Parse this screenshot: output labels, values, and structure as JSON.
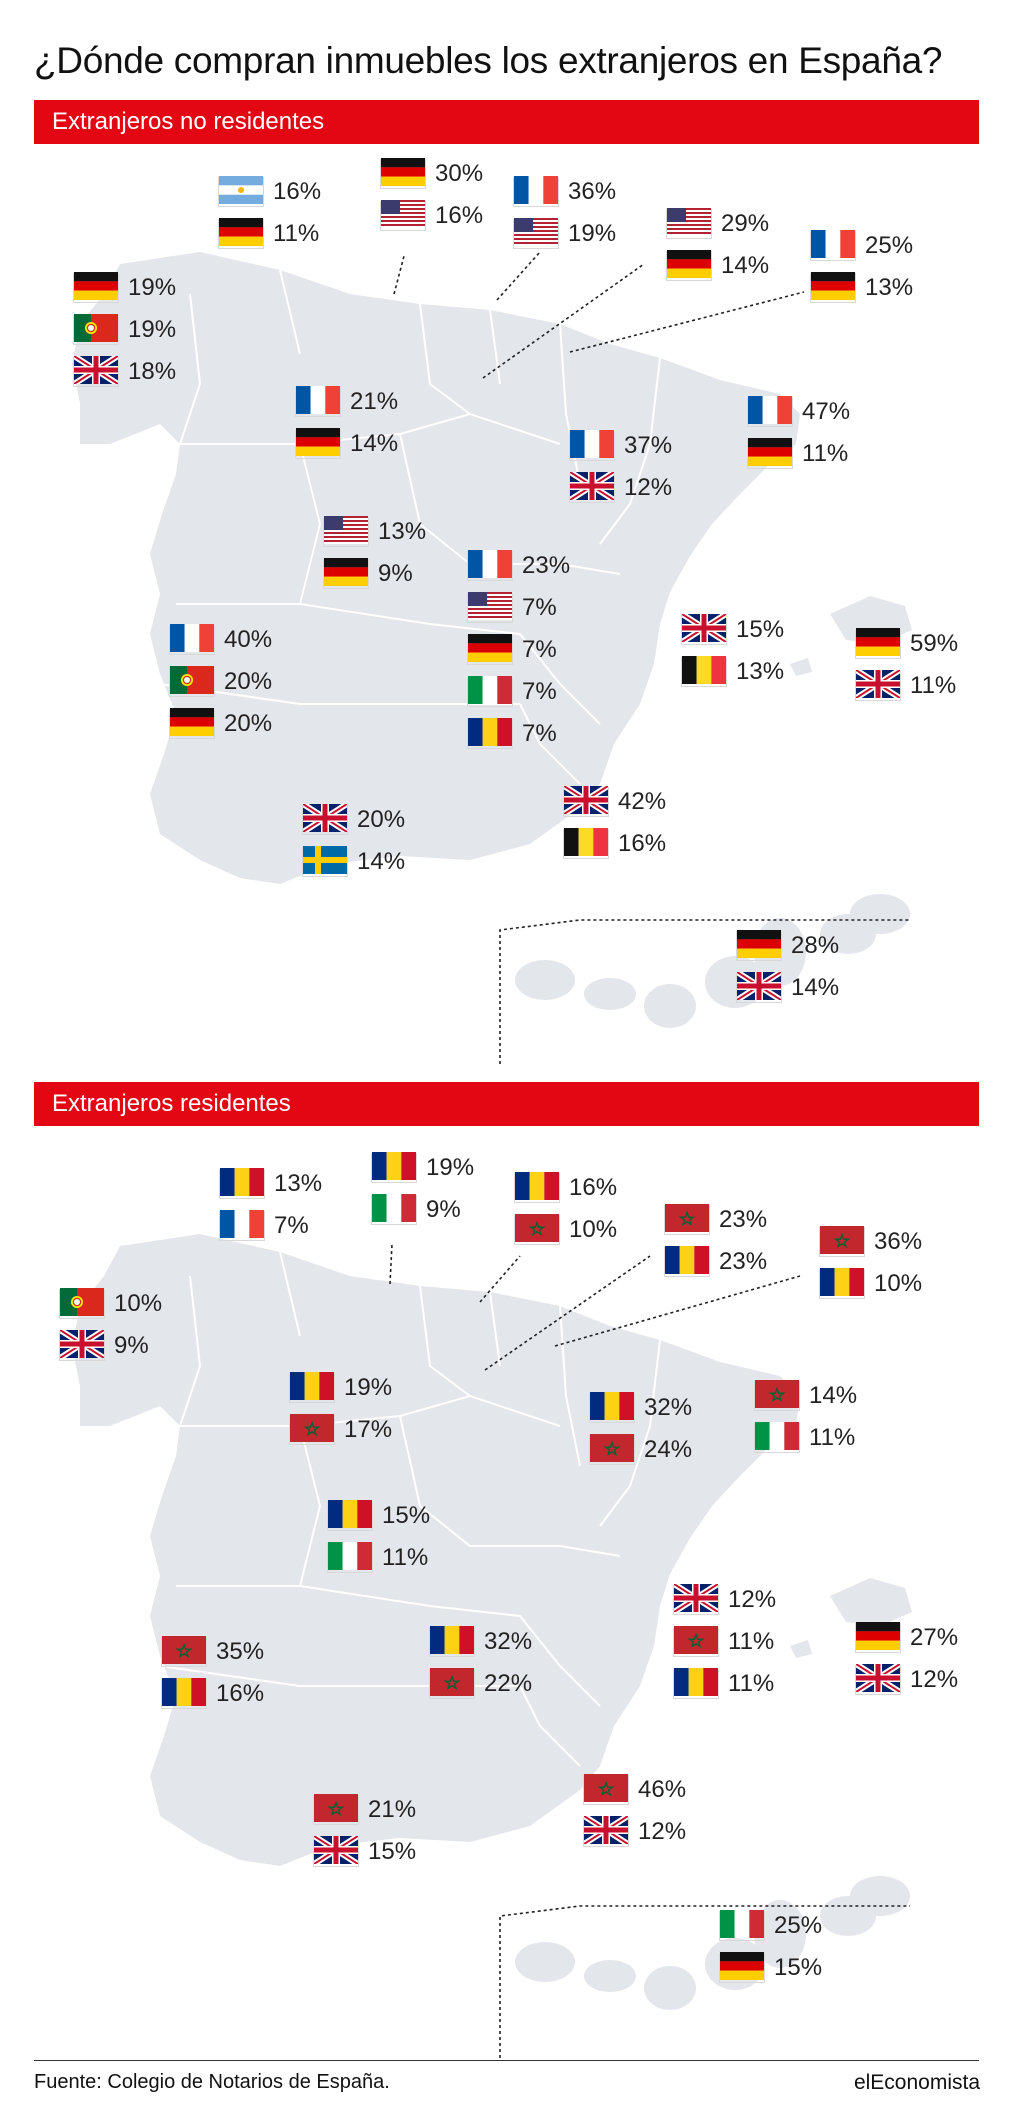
{
  "title": "¿Dónde compran inmuebles los extranjeros en España?",
  "colors": {
    "accent": "#e30613",
    "land": "#e3e6ea",
    "border": "#ffffff"
  },
  "sections": [
    {
      "id": "no-residentes",
      "heading": "Extranjeros no residentes",
      "regions": [
        {
          "region": "Asturias",
          "entries": [
            {
              "country": "Argentina",
              "flag": "argentina-flag",
              "pct": "16%"
            },
            {
              "country": "Alemania",
              "flag": "germany-flag",
              "pct": "11%"
            }
          ]
        },
        {
          "region": "Cantabria",
          "entries": [
            {
              "country": "Alemania",
              "flag": "germany-flag",
              "pct": "30%"
            },
            {
              "country": "Estados Unidos",
              "flag": "usa-flag",
              "pct": "16%"
            }
          ]
        },
        {
          "region": "País Vasco",
          "entries": [
            {
              "country": "Francia",
              "flag": "france-flag",
              "pct": "36%"
            },
            {
              "country": "Estados Unidos",
              "flag": "usa-flag",
              "pct": "19%"
            }
          ]
        },
        {
          "region": "La Rioja",
          "entries": [
            {
              "country": "Estados Unidos",
              "flag": "usa-flag",
              "pct": "29%"
            },
            {
              "country": "Alemania",
              "flag": "germany-flag",
              "pct": "14%"
            }
          ]
        },
        {
          "region": "Navarra",
          "entries": [
            {
              "country": "Francia",
              "flag": "france-flag",
              "pct": "25%"
            },
            {
              "country": "Alemania",
              "flag": "germany-flag",
              "pct": "13%"
            }
          ]
        },
        {
          "region": "Galicia",
          "entries": [
            {
              "country": "Alemania",
              "flag": "germany-flag",
              "pct": "19%"
            },
            {
              "country": "Portugal",
              "flag": "portugal-flag",
              "pct": "19%"
            },
            {
              "country": "Reino Unido",
              "flag": "uk-flag",
              "pct": "18%"
            }
          ]
        },
        {
          "region": "Castilla y León",
          "entries": [
            {
              "country": "Francia",
              "flag": "france-flag",
              "pct": "21%"
            },
            {
              "country": "Alemania",
              "flag": "germany-flag",
              "pct": "14%"
            }
          ]
        },
        {
          "region": "Aragón",
          "entries": [
            {
              "country": "Francia",
              "flag": "france-flag",
              "pct": "37%"
            },
            {
              "country": "Reino Unido",
              "flag": "uk-flag",
              "pct": "12%"
            }
          ]
        },
        {
          "region": "Cataluña",
          "entries": [
            {
              "country": "Francia",
              "flag": "france-flag",
              "pct": "47%"
            },
            {
              "country": "Alemania",
              "flag": "germany-flag",
              "pct": "11%"
            }
          ]
        },
        {
          "region": "Madrid",
          "entries": [
            {
              "country": "Estados Unidos",
              "flag": "usa-flag",
              "pct": "13%"
            },
            {
              "country": "Alemania",
              "flag": "germany-flag",
              "pct": "9%"
            }
          ]
        },
        {
          "region": "Castilla-La Mancha",
          "entries": [
            {
              "country": "Francia",
              "flag": "france-flag",
              "pct": "23%"
            },
            {
              "country": "Estados Unidos",
              "flag": "usa-flag",
              "pct": "7%"
            },
            {
              "country": "Alemania",
              "flag": "germany-flag",
              "pct": "7%"
            },
            {
              "country": "Italia",
              "flag": "italy-flag",
              "pct": "7%"
            },
            {
              "country": "Rumanía",
              "flag": "romania-flag",
              "pct": "7%"
            }
          ]
        },
        {
          "region": "Extremadura",
          "entries": [
            {
              "country": "Francia",
              "flag": "france-flag",
              "pct": "40%"
            },
            {
              "country": "Portugal",
              "flag": "portugal-flag",
              "pct": "20%"
            },
            {
              "country": "Alemania",
              "flag": "germany-flag",
              "pct": "20%"
            }
          ]
        },
        {
          "region": "Comunidad Valenciana",
          "entries": [
            {
              "country": "Reino Unido",
              "flag": "uk-flag",
              "pct": "15%"
            },
            {
              "country": "Bélgica",
              "flag": "belgium-flag",
              "pct": "13%"
            }
          ]
        },
        {
          "region": "Baleares",
          "entries": [
            {
              "country": "Alemania",
              "flag": "germany-flag",
              "pct": "59%"
            },
            {
              "country": "Reino Unido",
              "flag": "uk-flag",
              "pct": "11%"
            }
          ]
        },
        {
          "region": "Murcia",
          "entries": [
            {
              "country": "Reino Unido",
              "flag": "uk-flag",
              "pct": "42%"
            },
            {
              "country": "Bélgica",
              "flag": "belgium-flag",
              "pct": "16%"
            }
          ]
        },
        {
          "region": "Andalucía",
          "entries": [
            {
              "country": "Reino Unido",
              "flag": "uk-flag",
              "pct": "20%"
            },
            {
              "country": "Suecia",
              "flag": "sweden-flag",
              "pct": "14%"
            }
          ]
        },
        {
          "region": "Canarias",
          "entries": [
            {
              "country": "Alemania",
              "flag": "germany-flag",
              "pct": "28%"
            },
            {
              "country": "Reino Unido",
              "flag": "uk-flag",
              "pct": "14%"
            }
          ]
        }
      ]
    },
    {
      "id": "residentes",
      "heading": "Extranjeros residentes",
      "regions": [
        {
          "region": "Asturias",
          "entries": [
            {
              "country": "Rumanía",
              "flag": "romania-flag",
              "pct": "13%"
            },
            {
              "country": "Francia",
              "flag": "france-flag",
              "pct": "7%"
            }
          ]
        },
        {
          "region": "Cantabria",
          "entries": [
            {
              "country": "Rumanía",
              "flag": "romania-flag",
              "pct": "19%"
            },
            {
              "country": "Italia",
              "flag": "italy-flag",
              "pct": "9%"
            }
          ]
        },
        {
          "region": "País Vasco",
          "entries": [
            {
              "country": "Rumanía",
              "flag": "romania-flag",
              "pct": "16%"
            },
            {
              "country": "Marruecos",
              "flag": "morocco-flag",
              "pct": "10%"
            }
          ]
        },
        {
          "region": "La Rioja",
          "entries": [
            {
              "country": "Marruecos",
              "flag": "morocco-flag",
              "pct": "23%"
            },
            {
              "country": "Rumanía",
              "flag": "romania-flag",
              "pct": "23%"
            }
          ]
        },
        {
          "region": "Navarra",
          "entries": [
            {
              "country": "Marruecos",
              "flag": "morocco-flag",
              "pct": "36%"
            },
            {
              "country": "Rumanía",
              "flag": "romania-flag",
              "pct": "10%"
            }
          ]
        },
        {
          "region": "Galicia",
          "entries": [
            {
              "country": "Portugal",
              "flag": "portugal-flag",
              "pct": "10%"
            },
            {
              "country": "Reino Unido",
              "flag": "uk-flag",
              "pct": "9%"
            }
          ]
        },
        {
          "region": "Castilla y León",
          "entries": [
            {
              "country": "Rumanía",
              "flag": "romania-flag",
              "pct": "19%"
            },
            {
              "country": "Marruecos",
              "flag": "morocco-flag",
              "pct": "17%"
            }
          ]
        },
        {
          "region": "Aragón",
          "entries": [
            {
              "country": "Rumanía",
              "flag": "romania-flag",
              "pct": "32%"
            },
            {
              "country": "Marruecos",
              "flag": "morocco-flag",
              "pct": "24%"
            }
          ]
        },
        {
          "region": "Cataluña",
          "entries": [
            {
              "country": "Marruecos",
              "flag": "morocco-flag",
              "pct": "14%"
            },
            {
              "country": "Italia",
              "flag": "italy-flag",
              "pct": "11%"
            }
          ]
        },
        {
          "region": "Madrid",
          "entries": [
            {
              "country": "Rumanía",
              "flag": "romania-flag",
              "pct": "15%"
            },
            {
              "country": "Italia",
              "flag": "italy-flag",
              "pct": "11%"
            }
          ]
        },
        {
          "region": "Extremadura",
          "entries": [
            {
              "country": "Marruecos",
              "flag": "morocco-flag",
              "pct": "35%"
            },
            {
              "country": "Rumanía",
              "flag": "romania-flag",
              "pct": "16%"
            }
          ]
        },
        {
          "region": "Castilla-La Mancha",
          "entries": [
            {
              "country": "Rumanía",
              "flag": "romania-flag",
              "pct": "32%"
            },
            {
              "country": "Marruecos",
              "flag": "morocco-flag",
              "pct": "22%"
            }
          ]
        },
        {
          "region": "Comunidad Valenciana",
          "entries": [
            {
              "country": "Reino Unido",
              "flag": "uk-flag",
              "pct": "12%"
            },
            {
              "country": "Marruecos",
              "flag": "morocco-flag",
              "pct": "11%"
            },
            {
              "country": "Rumanía",
              "flag": "romania-flag",
              "pct": "11%"
            }
          ]
        },
        {
          "region": "Baleares",
          "entries": [
            {
              "country": "Alemania",
              "flag": "germany-flag",
              "pct": "27%"
            },
            {
              "country": "Reino Unido",
              "flag": "uk-flag",
              "pct": "12%"
            }
          ]
        },
        {
          "region": "Murcia",
          "entries": [
            {
              "country": "Marruecos",
              "flag": "morocco-flag",
              "pct": "46%"
            },
            {
              "country": "Reino Unido",
              "flag": "uk-flag",
              "pct": "12%"
            }
          ]
        },
        {
          "region": "Andalucía",
          "entries": [
            {
              "country": "Marruecos",
              "flag": "morocco-flag",
              "pct": "21%"
            },
            {
              "country": "Reino Unido",
              "flag": "uk-flag",
              "pct": "15%"
            }
          ]
        },
        {
          "region": "Canarias",
          "entries": [
            {
              "country": "Italia",
              "flag": "italy-flag",
              "pct": "25%"
            },
            {
              "country": "Alemania",
              "flag": "germany-flag",
              "pct": "15%"
            }
          ]
        }
      ]
    }
  ],
  "footer": {
    "source": "Fuente: Colegio de Notarios de España.",
    "brand": "elEconomista"
  }
}
